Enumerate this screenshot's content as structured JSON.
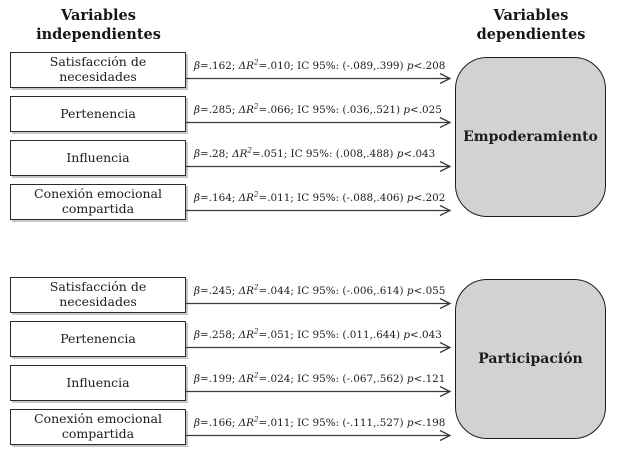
{
  "headers": {
    "independent_line1": "Variables",
    "independent_line2": "independientes",
    "dependent_line1": "Variables",
    "dependent_line2": "dependientes"
  },
  "colors": {
    "dependent_box_fill": "#d2d2d2",
    "box_border": "#2a2a2a",
    "arrow_line": "#3c3c3c",
    "text": "#1c1c1c"
  },
  "groups": [
    {
      "dependent": "Empoderamiento",
      "rows": [
        {
          "predictor": "Satisfacción de necesidades",
          "stats": "β=.162; ΔR²=.010; IC 95%: (-.089,.399) p<.208"
        },
        {
          "predictor": "Pertenencia",
          "stats": "β=.285; ΔR²=.066; IC 95%: (.036,.521) p<.025"
        },
        {
          "predictor": "Influencia",
          "stats": "β=.28; ΔR²=.051; IC 95%: (.008,.488) p<.043"
        },
        {
          "predictor": "Conexión emocional compartida",
          "stats": "β=.164; ΔR²=.011; IC 95%: (-.088,.406) p<.202"
        }
      ]
    },
    {
      "dependent": "Participación",
      "rows": [
        {
          "predictor": "Satisfacción de necesidades",
          "stats": "β=.245; ΔR²=.044; IC 95%: (-.006,.614) p<.055"
        },
        {
          "predictor": "Pertenencia",
          "stats": "β=.258; ΔR²=.051; IC 95%: (.011,.644) p<.043"
        },
        {
          "predictor": "Influencia",
          "stats": "β=.199; ΔR²=.024; IC 95%: (-.067,.562) p<.121"
        },
        {
          "predictor": "Conexión emocional compartida",
          "stats": "β=.166; ΔR²=.011; IC 95%: (-.111,.527) p<.198"
        }
      ]
    }
  ]
}
